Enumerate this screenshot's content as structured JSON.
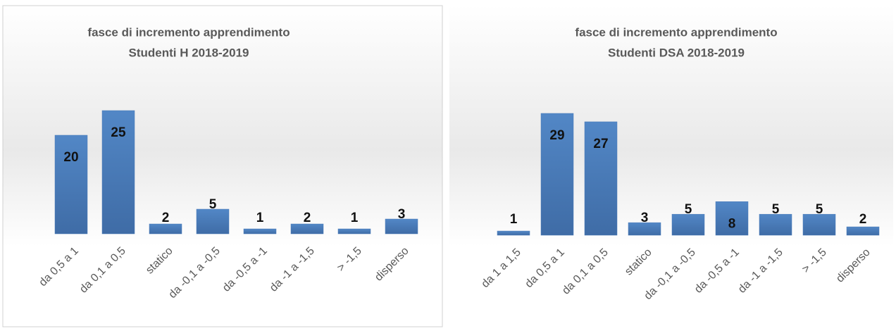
{
  "chart_data": [
    {
      "type": "bar",
      "title": "fasce di incremento apprendimento",
      "subtitle": "Studenti H 2018-2019",
      "categories": [
        "da 0,5 a 1",
        "da 0,1 a 0,5",
        "statico",
        "da -0,1 a -0,5",
        "da -0,5 a -1",
        "da -1 a -1,5",
        "> -1,5",
        "disperso"
      ],
      "values": [
        20,
        25,
        2,
        5,
        1,
        2,
        1,
        3
      ],
      "color": "#4a7ab8"
    },
    {
      "type": "bar",
      "title": "fasce di incremento apprendimento",
      "subtitle": "Studenti DSA 2018-2019",
      "categories": [
        "da 1 a 1,5",
        "da 0,5 a 1",
        "da 0,1 a 0,5",
        "statico",
        "da -0,1 a -0,5",
        "da -0,5 a -1",
        "da -1 a -1,5",
        "> -1,5",
        "disperso"
      ],
      "values": [
        1,
        29,
        27,
        3,
        5,
        8,
        5,
        5,
        2
      ],
      "color": "#4a7ab8"
    }
  ]
}
